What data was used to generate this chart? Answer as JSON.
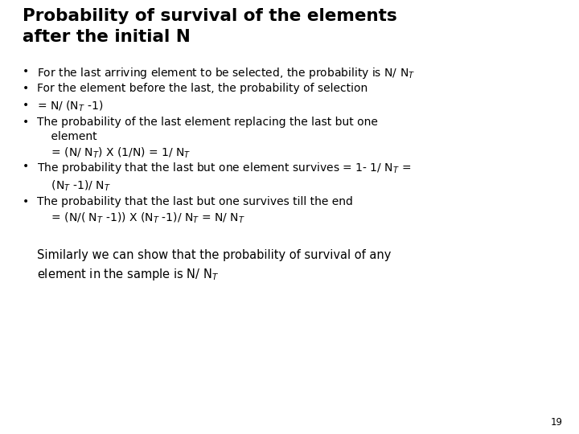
{
  "title_line1": "Probability of survival of the elements",
  "title_line2": "after the initial N",
  "background_color": "#ffffff",
  "title_color": "#000000",
  "text_color": "#000000",
  "page_number": "19",
  "title_fontsize": 15.5,
  "body_fontsize": 10.0,
  "footer_fontsize": 10.5
}
